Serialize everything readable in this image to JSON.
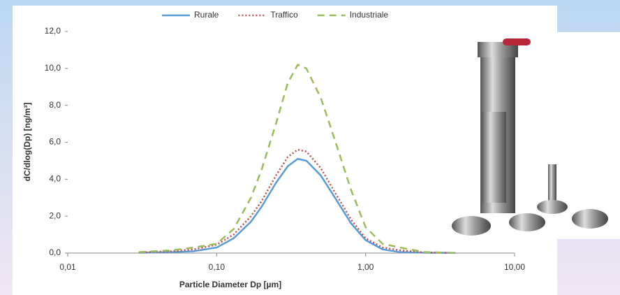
{
  "chart_data": {
    "type": "line",
    "x_label": "Particle Diameter Dp [µm]",
    "y_label": "dC/dlog(Dp) [ng/m³]",
    "xscale": "log",
    "xlim": [
      0.01,
      10
    ],
    "xticks": [
      {
        "value": 0.01,
        "label": "0,01"
      },
      {
        "value": 0.1,
        "label": "0,10"
      },
      {
        "value": 1,
        "label": "1,00"
      },
      {
        "value": 10,
        "label": "10,00"
      }
    ],
    "ylim": [
      0,
      12
    ],
    "yticks": [
      {
        "value": 0,
        "label": "0,0"
      },
      {
        "value": 2,
        "label": "2,0"
      },
      {
        "value": 4,
        "label": "4,0"
      },
      {
        "value": 6,
        "label": "6,0"
      },
      {
        "value": 8,
        "label": "8,0"
      },
      {
        "value": 10,
        "label": "10,0"
      },
      {
        "value": 12,
        "label": "12,0"
      }
    ],
    "grid": false,
    "legend": "top",
    "x": [
      0.03,
      0.05,
      0.07,
      0.1,
      0.13,
      0.17,
      0.2,
      0.25,
      0.3,
      0.35,
      0.4,
      0.5,
      0.6,
      0.8,
      1.0,
      1.3,
      1.7,
      2.5,
      4
    ],
    "series": [
      {
        "name": "Rurale",
        "color": "#5b9bd5",
        "dash": "solid",
        "values": [
          0.02,
          0.05,
          0.1,
          0.3,
          0.8,
          1.7,
          2.5,
          3.8,
          4.7,
          5.1,
          5.0,
          4.2,
          3.2,
          1.6,
          0.7,
          0.2,
          0.05,
          0.02,
          0.01
        ]
      },
      {
        "name": "Traffico",
        "color": "#c0504d",
        "dash": "dotted",
        "values": [
          0.03,
          0.1,
          0.2,
          0.45,
          1.0,
          2.0,
          2.8,
          4.2,
          5.2,
          5.6,
          5.5,
          4.6,
          3.5,
          1.8,
          0.8,
          0.3,
          0.15,
          0.03,
          0.01
        ]
      },
      {
        "name": "Industriale",
        "color": "#9bbb59",
        "dash": "dashed",
        "values": [
          0.05,
          0.15,
          0.3,
          0.5,
          1.3,
          3.0,
          4.5,
          7.0,
          9.2,
          10.2,
          10.0,
          8.4,
          6.5,
          3.4,
          1.4,
          0.5,
          0.3,
          0.05,
          0.01
        ]
      }
    ]
  }
}
